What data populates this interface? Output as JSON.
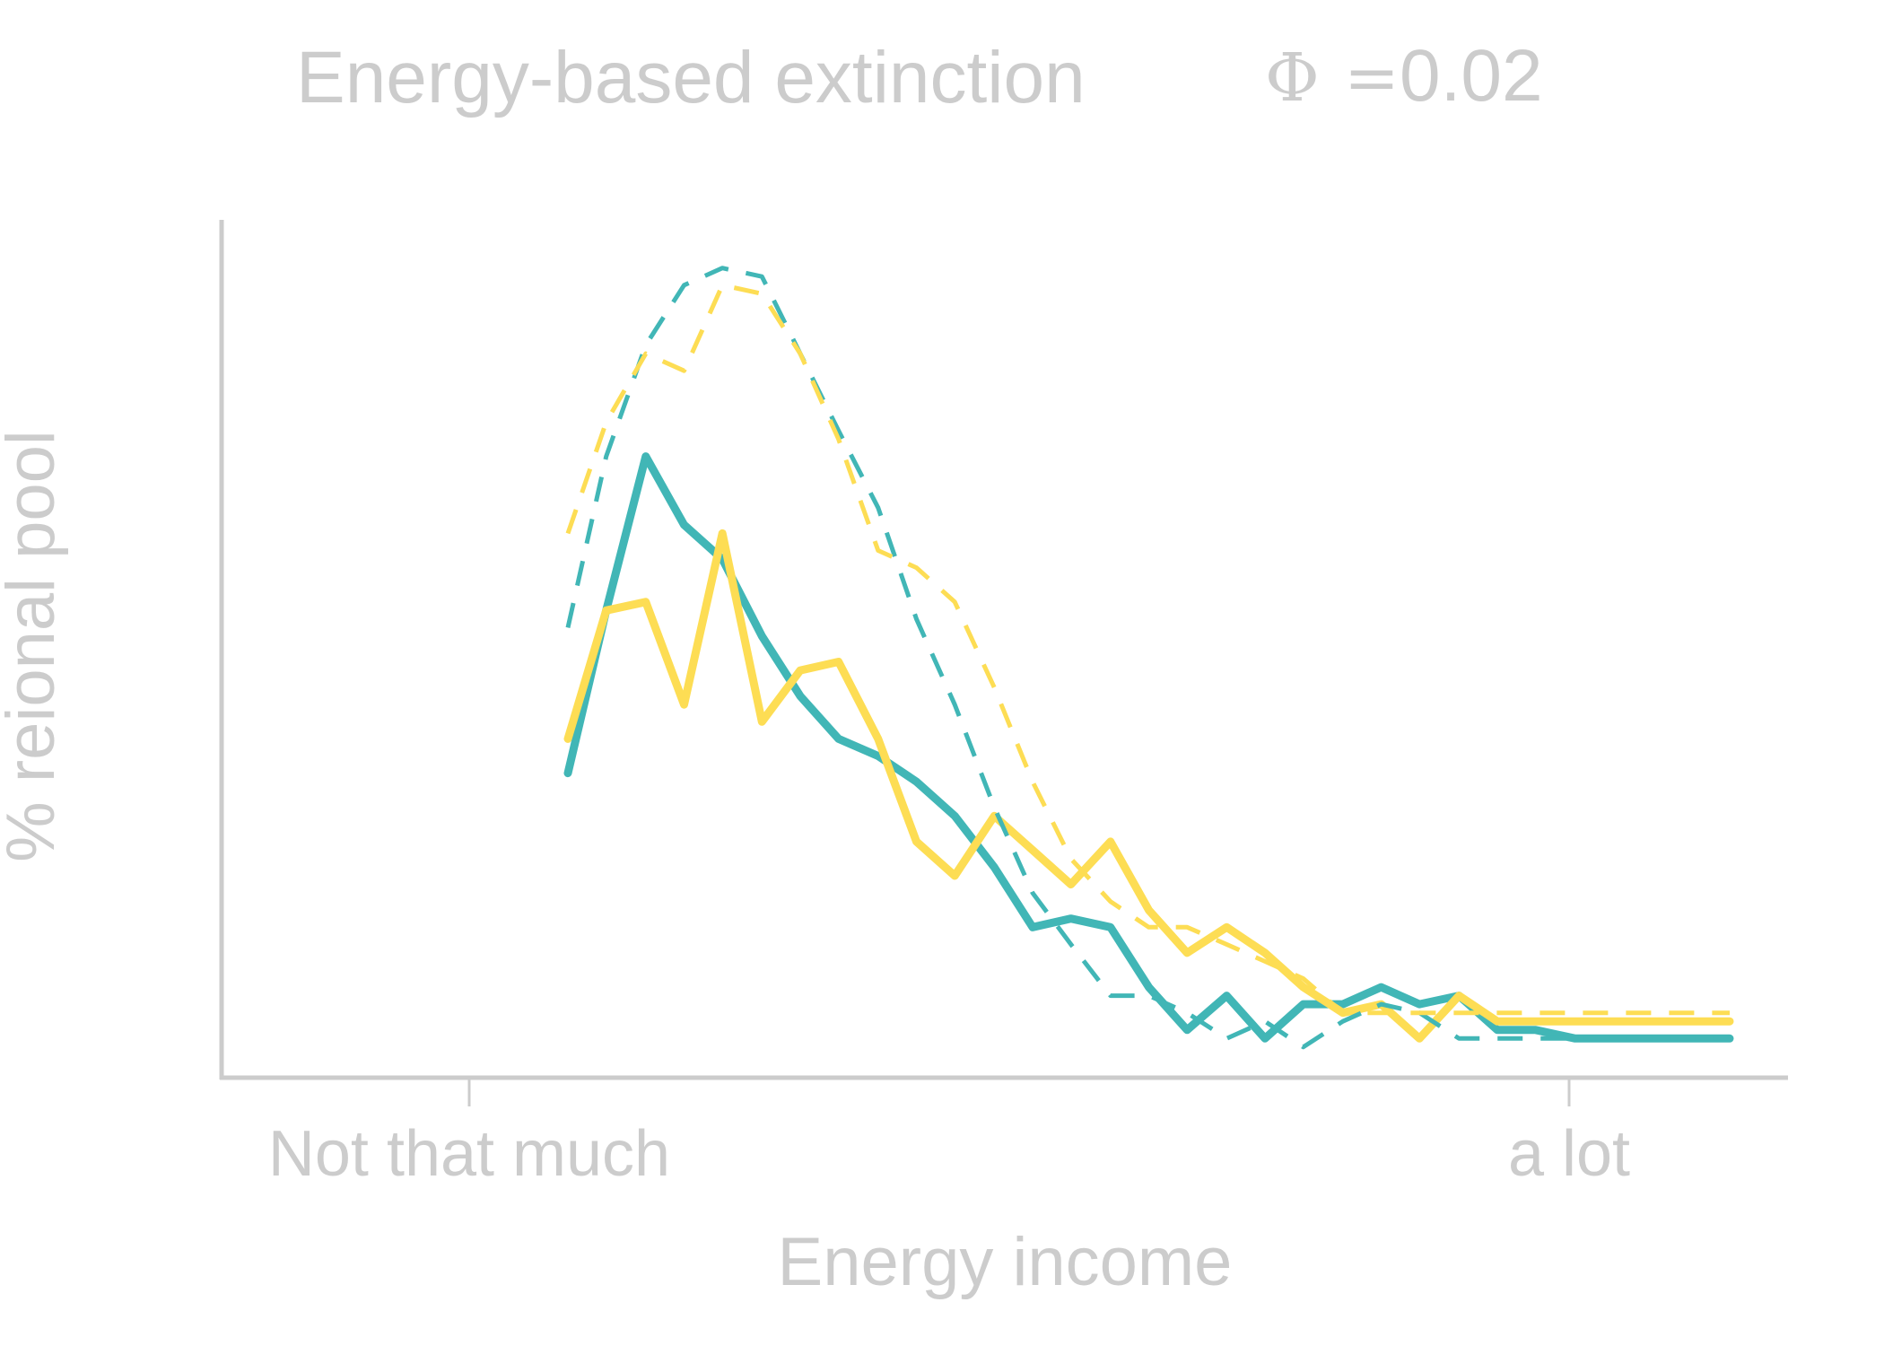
{
  "chart_data": {
    "type": "line",
    "title": "Energy-based extinction",
    "annotation": {
      "symbol": "Φ",
      "operator": "=",
      "value": "0.02"
    },
    "xlabel": "Energy income",
    "ylabel": "% reional pool",
    "x_tick_labels": [
      "Not that much",
      "a lot"
    ],
    "y_tick_labels": [],
    "grid": false,
    "legend": "none",
    "xlim": [
      0,
      1
    ],
    "ylim": [
      0,
      1
    ],
    "x": [
      0.0,
      0.033,
      0.067,
      0.1,
      0.133,
      0.167,
      0.2,
      0.233,
      0.267,
      0.3,
      0.333,
      0.367,
      0.4,
      0.433,
      0.467,
      0.5,
      0.533,
      0.567,
      0.6,
      0.633,
      0.667,
      0.7,
      0.733,
      0.767,
      0.8,
      0.833,
      0.867,
      0.9,
      0.933,
      0.967,
      1.0
    ],
    "series": [
      {
        "style": "solid",
        "color": "#41b6b6",
        "values": [
          0.36,
          0.55,
          0.73,
          0.65,
          0.61,
          0.52,
          0.45,
          0.4,
          0.38,
          0.35,
          0.31,
          0.25,
          0.18,
          0.19,
          0.18,
          0.11,
          0.06,
          0.1,
          0.05,
          0.09,
          0.09,
          0.11,
          0.09,
          0.1,
          0.06,
          0.06,
          0.05,
          0.05,
          0.05,
          0.05,
          0.05
        ]
      },
      {
        "style": "solid",
        "color": "#fddd54",
        "values": [
          0.4,
          0.55,
          0.56,
          0.44,
          0.64,
          0.42,
          0.48,
          0.49,
          0.4,
          0.28,
          0.24,
          0.31,
          0.27,
          0.23,
          0.28,
          0.2,
          0.15,
          0.18,
          0.15,
          0.11,
          0.08,
          0.09,
          0.05,
          0.1,
          0.07,
          0.07,
          0.07,
          0.07,
          0.07,
          0.07,
          0.07
        ]
      },
      {
        "style": "dashed",
        "color": "#41b6b6",
        "values": [
          0.53,
          0.73,
          0.86,
          0.93,
          0.95,
          0.94,
          0.85,
          0.76,
          0.67,
          0.54,
          0.44,
          0.32,
          0.22,
          0.16,
          0.1,
          0.1,
          0.08,
          0.05,
          0.07,
          0.04,
          0.07,
          0.09,
          0.08,
          0.05,
          0.05,
          0.05,
          0.05,
          0.05,
          0.05,
          0.05,
          0.05
        ]
      },
      {
        "style": "dashed",
        "color": "#fddd54",
        "values": [
          0.64,
          0.77,
          0.85,
          0.83,
          0.93,
          0.92,
          0.85,
          0.75,
          0.62,
          0.6,
          0.56,
          0.46,
          0.35,
          0.26,
          0.21,
          0.18,
          0.18,
          0.16,
          0.14,
          0.12,
          0.08,
          0.08,
          0.08,
          0.08,
          0.08,
          0.08,
          0.08,
          0.08,
          0.08,
          0.08,
          0.08
        ]
      }
    ]
  }
}
